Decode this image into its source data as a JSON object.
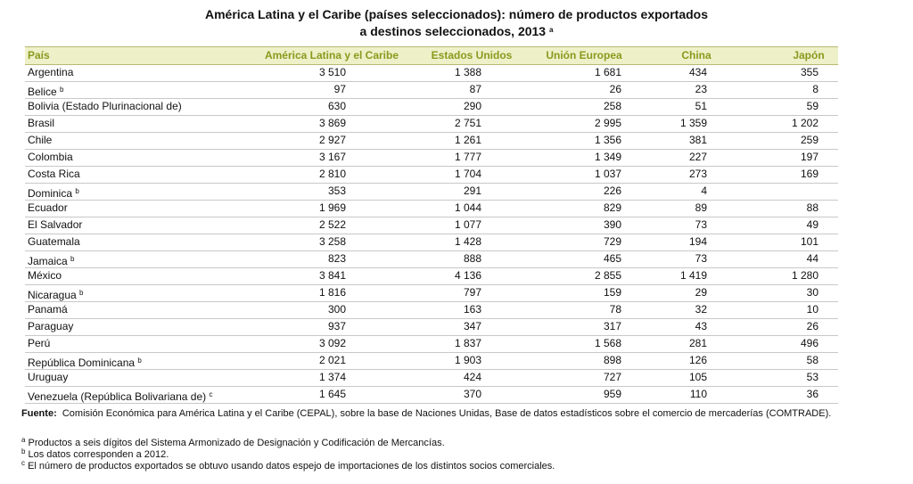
{
  "title": {
    "line1": "América Latina y el Caribe (países seleccionados): número de productos exportados",
    "line2": "a destinos seleccionados, 2013",
    "line2_note": "a"
  },
  "table": {
    "headers": [
      "País",
      "América Latina y el Caribe",
      "Estados Unidos",
      "Unión Europea",
      "China",
      "Japón"
    ],
    "rows": [
      {
        "pais": "Argentina",
        "values": [
          "3 510",
          "1 388",
          "1 681",
          "434",
          "355"
        ]
      },
      {
        "pais": "Belice",
        "nota": "b",
        "values": [
          "97",
          "87",
          "26",
          "23",
          "8"
        ]
      },
      {
        "pais": "Bolivia (Estado Plurinacional de)",
        "values": [
          "630",
          "290",
          "258",
          "51",
          "59"
        ]
      },
      {
        "pais": "Brasil",
        "values": [
          "3 869",
          "2 751",
          "2 995",
          "1 359",
          "1 202"
        ]
      },
      {
        "pais": "Chile",
        "values": [
          "2 927",
          "1 261",
          "1 356",
          "381",
          "259"
        ]
      },
      {
        "pais": "Colombia",
        "values": [
          "3 167",
          "1 777",
          "1 349",
          "227",
          "197"
        ]
      },
      {
        "pais": "Costa Rica",
        "values": [
          "2 810",
          "1 704",
          "1 037",
          "273",
          "169"
        ]
      },
      {
        "pais": "Dominica",
        "nota": "b",
        "values": [
          "353",
          "291",
          "226",
          "4",
          null
        ]
      },
      {
        "pais": "Ecuador",
        "values": [
          "1 969",
          "1 044",
          "829",
          "89",
          "88"
        ]
      },
      {
        "pais": "El Salvador",
        "values": [
          "2 522",
          "1 077",
          "390",
          "73",
          "49"
        ]
      },
      {
        "pais": "Guatemala",
        "values": [
          "3 258",
          "1 428",
          "729",
          "194",
          "101"
        ]
      },
      {
        "pais": "Jamaica",
        "nota": "b",
        "values": [
          "823",
          "888",
          "465",
          "73",
          "44"
        ]
      },
      {
        "pais": "México",
        "values": [
          "3 841",
          "4 136",
          "2 855",
          "1 419",
          "1 280"
        ]
      },
      {
        "pais": "Nicaragua",
        "nota": "b",
        "values": [
          "1 816",
          "797",
          "159",
          "29",
          "30"
        ]
      },
      {
        "pais": "Panamá",
        "values": [
          "300",
          "163",
          "78",
          "32",
          "10"
        ]
      },
      {
        "pais": "Paraguay",
        "values": [
          "937",
          "347",
          "317",
          "43",
          "26"
        ]
      },
      {
        "pais": "Perú",
        "values": [
          "3 092",
          "1 837",
          "1 568",
          "281",
          "496"
        ]
      },
      {
        "pais": "República Dominicana",
        "nota": "b",
        "values": [
          "2 021",
          "1 903",
          "898",
          "126",
          "58"
        ]
      },
      {
        "pais": "Uruguay",
        "values": [
          "1 374",
          "424",
          "727",
          "105",
          "53"
        ]
      },
      {
        "pais": "Venezuela (República Bolivariana de)",
        "nota": "c",
        "values": [
          "1 645",
          "370",
          "959",
          "110",
          "36"
        ]
      }
    ]
  },
  "footer": {
    "source_label": "Fuente",
    "source_text": "Comisión Económica para América Latina y el Caribe (CEPAL), sobre la base de Naciones Unidas, Base de datos estadísticos sobre el comercio de mercaderías (COMTRADE).",
    "notes": [
      {
        "mark": "a",
        "text": "Productos a seis dígitos del Sistema Armonizado de Designación y Codificación de Mercancías."
      },
      {
        "mark": "b",
        "text": "Los datos corresponden a 2012."
      },
      {
        "mark": "c",
        "text": "El número de productos exportados se obtuvo usando datos espejo de importaciones de los distintos socios comerciales."
      }
    ]
  }
}
